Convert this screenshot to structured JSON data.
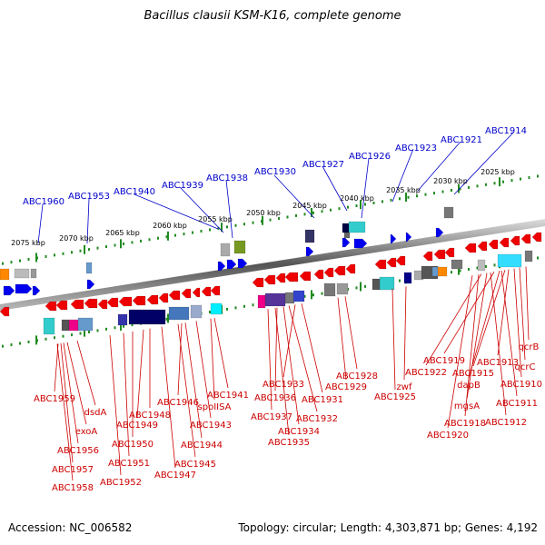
{
  "title": "Bacillus clausii KSM-K16, complete genome",
  "footer": {
    "accession": "Accession: NC_006582",
    "topology": "Topology: circular; Length: 4,303,871 bp; Genes: 4,192"
  },
  "colors": {
    "top_labels": "#0000cc",
    "bottom_labels": "#cc0000",
    "ticks": "#228b22",
    "backbone": "#888888"
  },
  "scale_labels": [
    "2025 kbp",
    "2030 kbp",
    "2035 kbp",
    "2040 kbp",
    "2045 kbp",
    "2050 kbp",
    "2055 kbp",
    "2060 kbp",
    "2065 kbp",
    "2070 kbp",
    "2075 kbp"
  ],
  "top_labels": [
    "ABC1914",
    "ABC1921",
    "ABC1923",
    "ABC1926",
    "ABC1927",
    "ABC1930",
    "ABC1938",
    "ABC1939",
    "ABC1940",
    "ABC1953",
    "ABC1960"
  ],
  "bottom_labels": [
    "qcrB",
    "qcrC",
    "ABC1913",
    "ABC1910",
    "ABC1919",
    "ABC1915",
    "ABC1922",
    "dapB",
    "ABC1911",
    "mgsA",
    "ABC1912",
    "ABC1918",
    "ABC1920",
    "zwf",
    "ABC1925",
    "ABC1928",
    "ABC1929",
    "ABC1933",
    "ABC1931",
    "ABC1936",
    "ABC1932",
    "ABC1937",
    "ABC1934",
    "ABC1935",
    "ABC1941",
    "spoIISA",
    "ABC1946",
    "ABC1943",
    "ABC1948",
    "ABC1949",
    "ABC1944",
    "ABC1950",
    "ABC1945",
    "ABC1951",
    "ABC1947",
    "ABC1952",
    "ABC1959",
    "dsdA",
    "exoA",
    "ABC1956",
    "ABC1957",
    "ABC1958"
  ]
}
